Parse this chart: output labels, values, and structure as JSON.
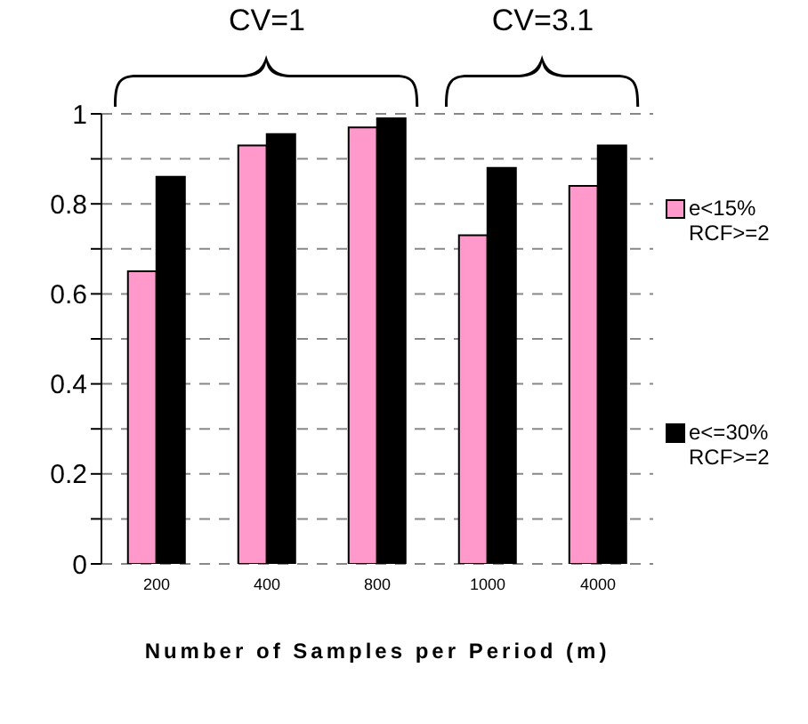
{
  "chart_data": {
    "type": "bar",
    "xlabel": "Number of Samples per Period (m)",
    "categories": [
      "200",
      "400",
      "800",
      "1000",
      "4000"
    ],
    "series": [
      {
        "name": "e<15% RCF>=2",
        "color": "#ff99cc",
        "values": [
          0.65,
          0.93,
          0.97,
          0.73,
          0.84
        ]
      },
      {
        "name": "e<=30% RCF>=2",
        "color": "#000000",
        "values": [
          0.86,
          0.955,
          0.99,
          0.88,
          0.93
        ]
      }
    ],
    "ylim": [
      0,
      1
    ],
    "yticks": [
      0,
      {
        "value": 0.1,
        "label": null
      },
      0.2,
      {
        "value": 0.3,
        "label": null
      },
      0.4,
      {
        "value": 0.5,
        "label": null
      },
      0.6,
      {
        "value": 0.7,
        "label": null
      },
      0.8,
      {
        "value": 0.9,
        "label": null
      },
      1
    ],
    "grid": "y",
    "legend": "right",
    "annotations": [
      "CV=1",
      "CV=3.1"
    ]
  }
}
